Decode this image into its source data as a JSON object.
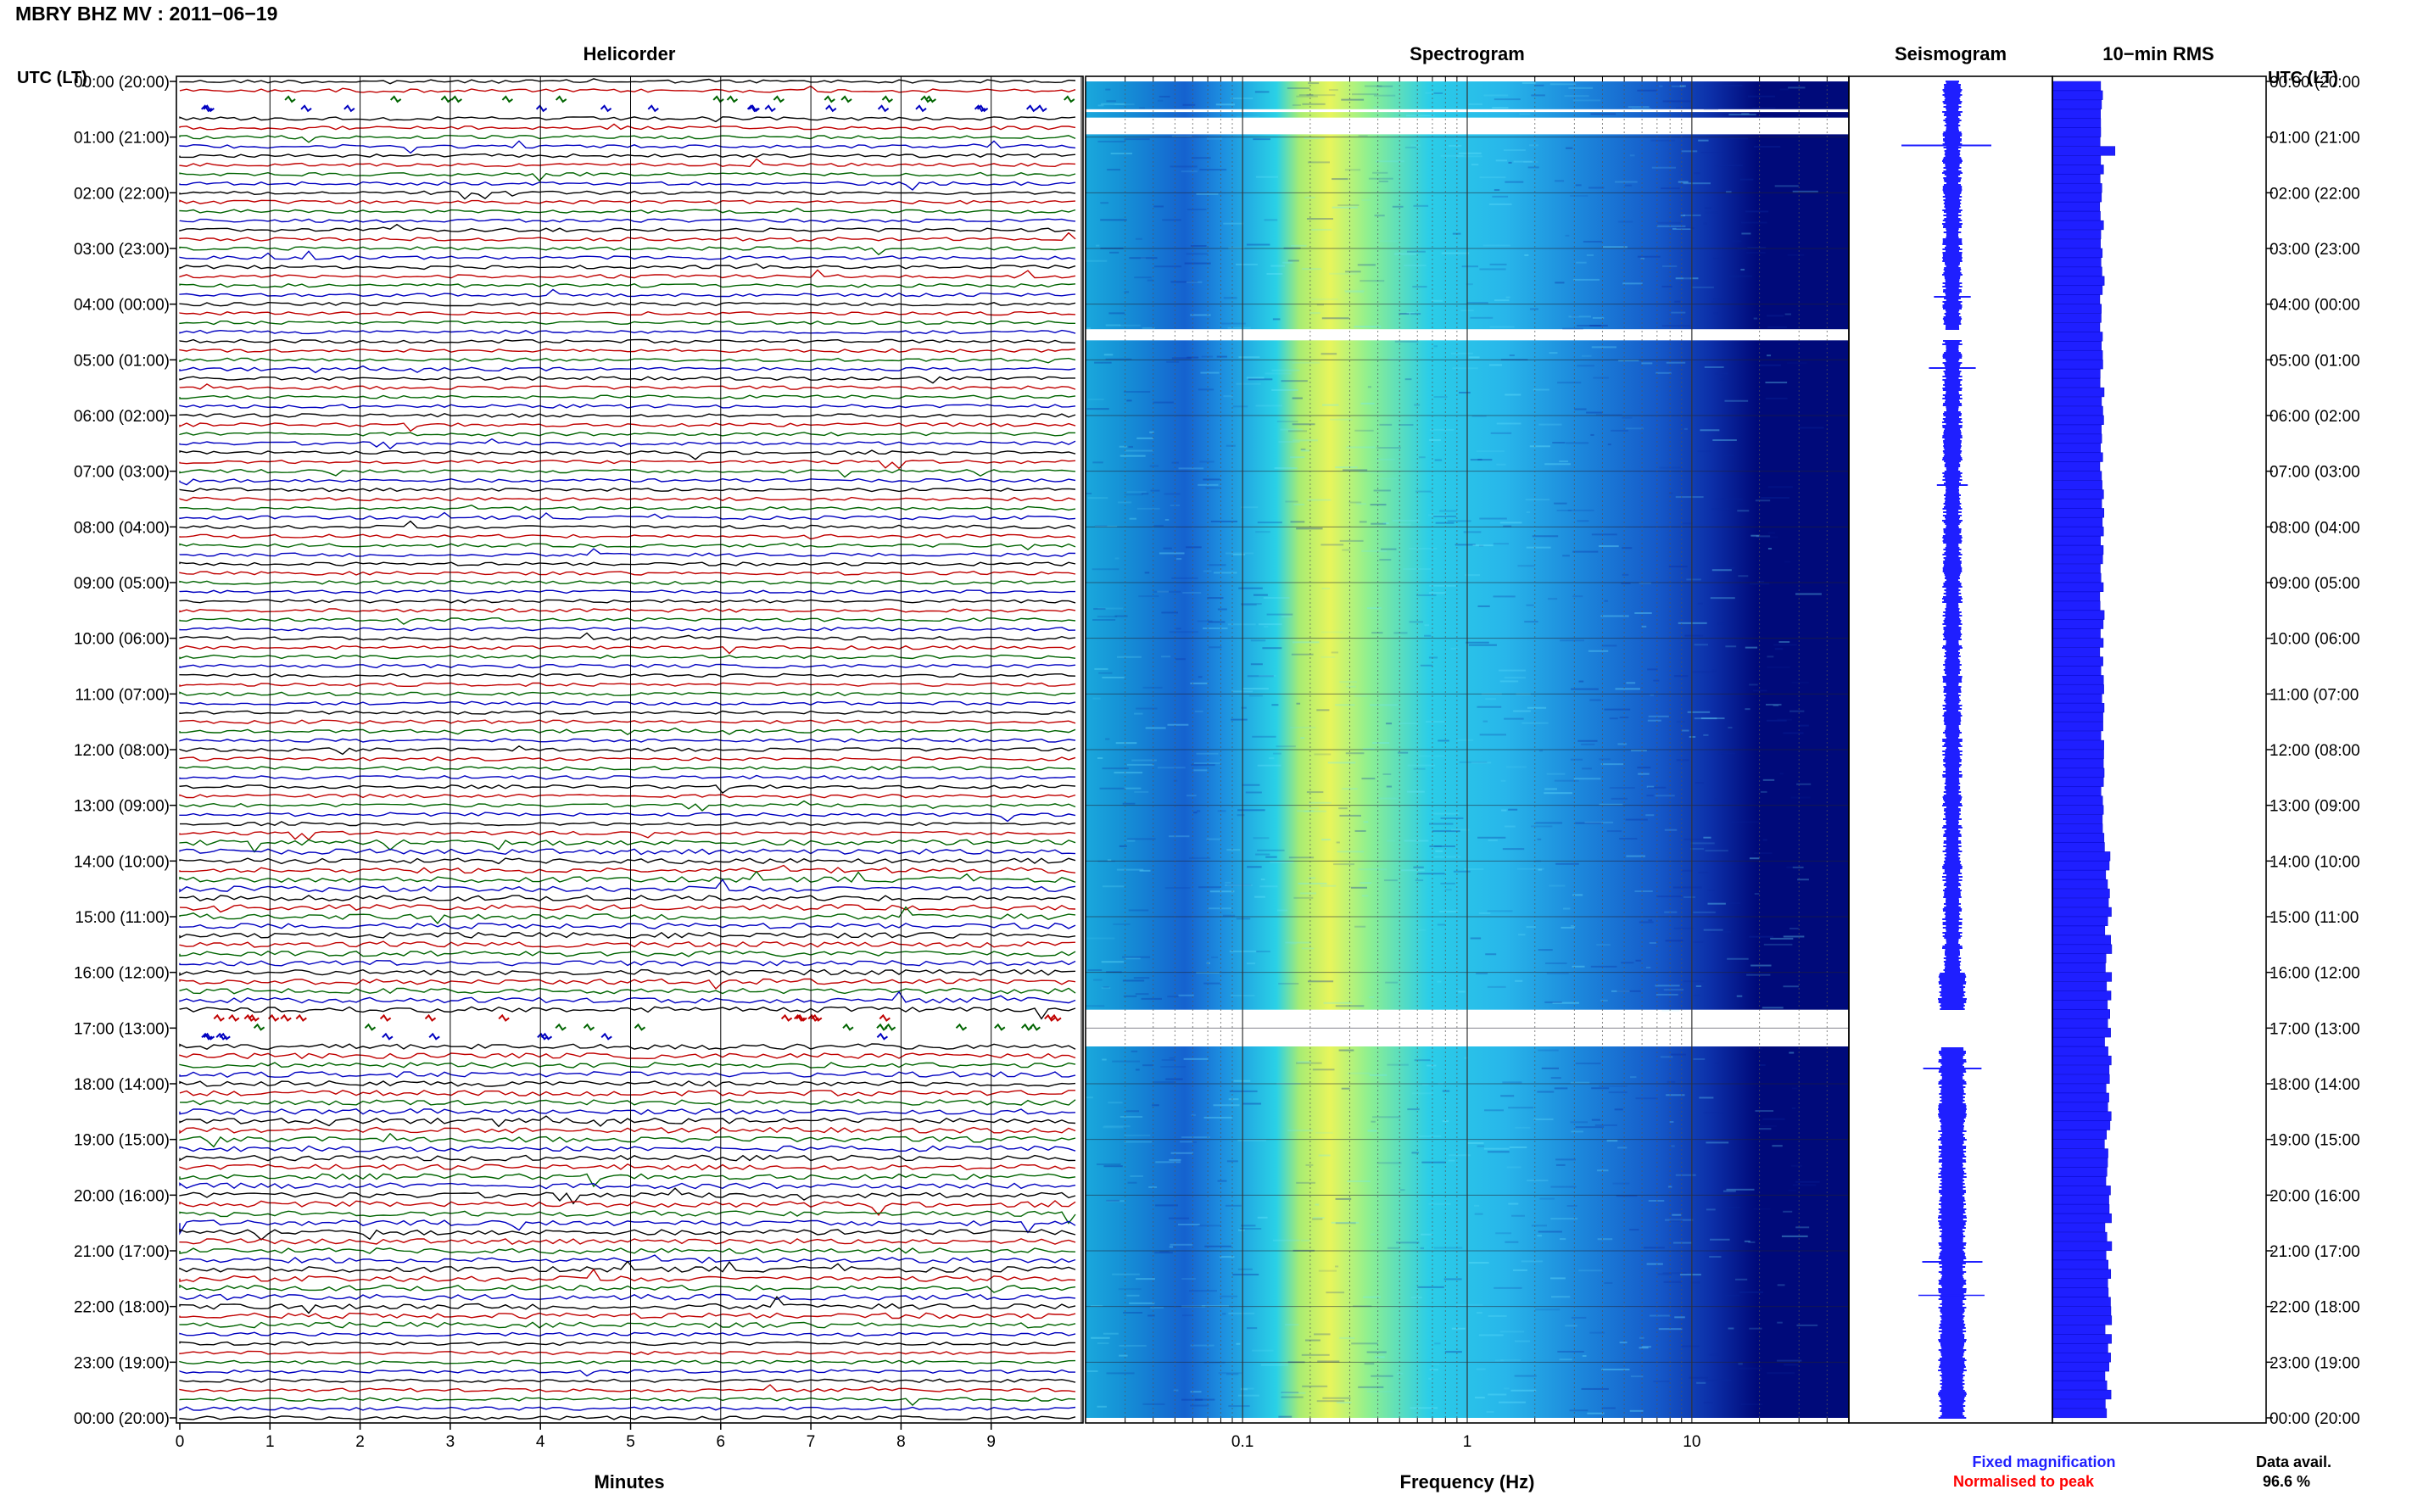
{
  "page": {
    "title": "MBRY BHZ MV : 2011−06−19",
    "utc_label_left": "UTC (LT)",
    "utc_label_right": "UTC (LT)"
  },
  "panels": {
    "helicorder": {
      "title": "Helicorder",
      "xlabel": "Minutes"
    },
    "spectrogram": {
      "title": "Spectrogram",
      "xlabel": "Frequency (Hz)"
    },
    "seismogram": {
      "title": "Seismogram"
    },
    "rms": {
      "title": "10−min RMS"
    }
  },
  "legend": {
    "fixed": "Fixed magnification",
    "normalised": "Normalised to peak",
    "fixed_color": "#1f1fff",
    "normalised_color": "#ff0000"
  },
  "data_availability": {
    "label": "Data avail.",
    "value": "96.6 %"
  },
  "chart_data": [
    {
      "type": "line",
      "name": "helicorder",
      "title": "Helicorder",
      "xlabel": "Minutes",
      "x_ticks": [
        "0",
        "1",
        "2",
        "3",
        "4",
        "5",
        "6",
        "7",
        "8",
        "9"
      ],
      "xlim": [
        0,
        10
      ],
      "rows_per_hour": 6,
      "trace_colors": [
        "#000000",
        "#c00000",
        "#006400",
        "#0000c0"
      ],
      "hour_labels": [
        "00:00 (20:00)",
        "01:00 (21:00)",
        "02:00 (22:00)",
        "03:00 (23:00)",
        "04:00 (00:00)",
        "05:00 (01:00)",
        "06:00 (02:00)",
        "07:00 (03:00)",
        "08:00 (04:00)",
        "09:00 (05:00)",
        "10:00 (06:00)",
        "11:00 (07:00)",
        "12:00 (08:00)",
        "13:00 (09:00)",
        "14:00 (10:00)",
        "15:00 (11:00)",
        "16:00 (12:00)",
        "17:00 (13:00)",
        "18:00 (14:00)",
        "19:00 (15:00)",
        "20:00 (16:00)",
        "21:00 (17:00)",
        "22:00 (18:00)",
        "23:00 (19:00)",
        "00:00 (20:00)"
      ],
      "gaps_hours": [
        [
          0.33,
          0.55
        ],
        [
          16.67,
          17.33
        ]
      ]
    },
    {
      "type": "heatmap",
      "name": "spectrogram",
      "title": "Spectrogram",
      "xlabel": "Frequency (Hz)",
      "x_scale": "log",
      "xlim": [
        0.02,
        50
      ],
      "x_tick_labels": [
        {
          "value": 0.1,
          "label": "0.1"
        },
        {
          "value": 1,
          "label": "1"
        },
        {
          "value": 10,
          "label": "10"
        }
      ],
      "colormap": "jet",
      "energy_peak_hz": [
        0.2,
        0.5
      ],
      "gaps_hours": [
        [
          0.5,
          0.55
        ],
        [
          0.65,
          0.95
        ],
        [
          4.45,
          4.65
        ],
        [
          16.67,
          17.33
        ]
      ]
    },
    {
      "type": "line",
      "name": "seismogram",
      "title": "Seismogram",
      "color": "#1f1fff"
    },
    {
      "type": "bar",
      "name": "rms",
      "title": "10−min RMS",
      "color": "#1f1fff",
      "orientation": "horizontal",
      "bin_minutes": 10
    }
  ]
}
